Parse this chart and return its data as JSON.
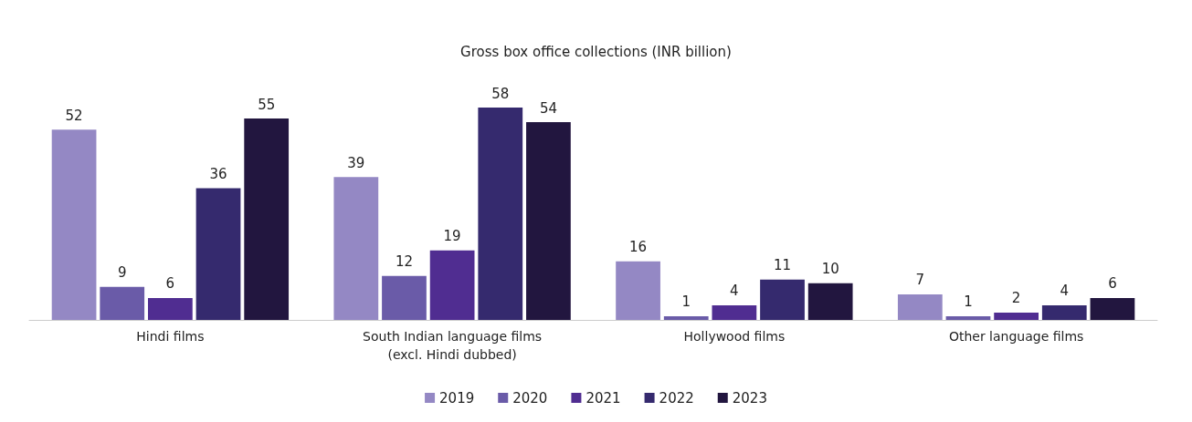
{
  "chart_data": {
    "type": "bar",
    "title": "Gross box office collections (INR billion)",
    "categories": [
      "Hindi films",
      "South Indian language films\n(excl. Hindi dubbed)",
      "Hollywood films",
      "Other language films"
    ],
    "series": [
      {
        "name": "2019",
        "color": "#9488c4",
        "values": [
          52,
          39,
          16,
          7
        ]
      },
      {
        "name": "2020",
        "color": "#6a5ba8",
        "values": [
          9,
          12,
          1,
          1
        ]
      },
      {
        "name": "2021",
        "color": "#502d91",
        "values": [
          6,
          19,
          4,
          2
        ]
      },
      {
        "name": "2022",
        "color": "#352a6e",
        "values": [
          36,
          58,
          11,
          4
        ]
      },
      {
        "name": "2023",
        "color": "#22163f",
        "values": [
          55,
          54,
          10,
          6
        ]
      }
    ],
    "data_labels": true,
    "legend": "bottom"
  }
}
